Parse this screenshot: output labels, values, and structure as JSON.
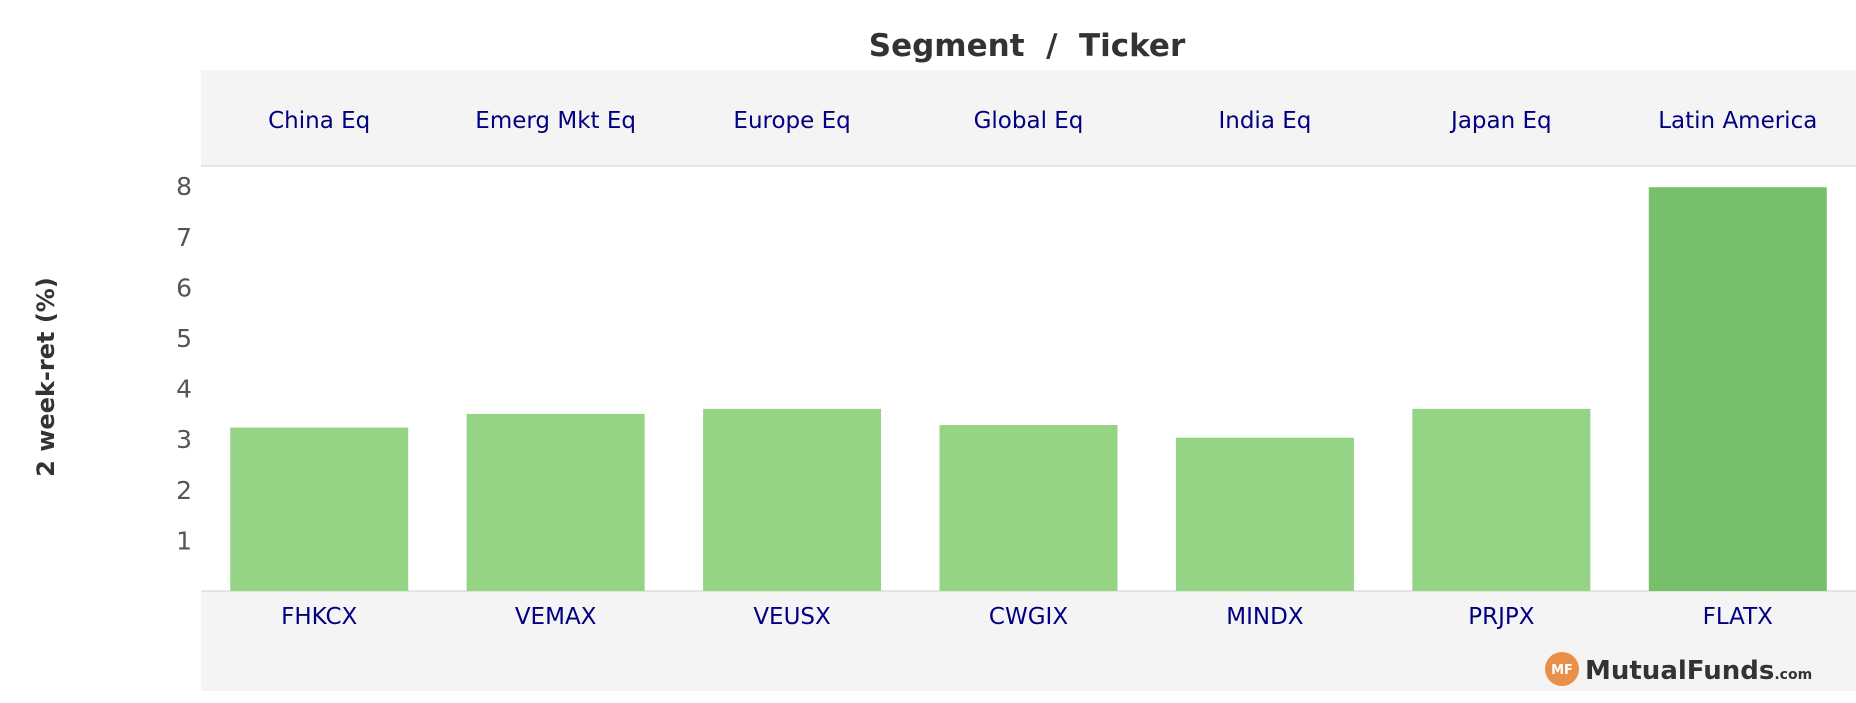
{
  "chart_data": {
    "type": "bar",
    "title": "Segment  /  Ticker",
    "ylabel": "2 week-ret (%)",
    "ylim": [
      0,
      8
    ],
    "y_ticks": [
      1,
      2,
      3,
      4,
      5,
      6,
      7,
      8
    ],
    "segments": [
      "China Eq",
      "Emerg Mkt Eq",
      "Europe Eq",
      "Global Eq",
      "India Eq",
      "Japan Eq",
      "Latin America"
    ],
    "categories": [
      "FHKCX",
      "VEMAX",
      "VEUSX",
      "CWGIX",
      "MINDX",
      "PRJPX",
      "FLATX"
    ],
    "values": [
      3.23,
      3.5,
      3.6,
      3.28,
      3.03,
      3.6,
      7.98
    ],
    "colors": {
      "bar_light": "#95d485",
      "bar_highlight": "#77bf6a",
      "header_bg": "#f4f4f4",
      "label_color": "#000080"
    },
    "grid": false,
    "legend": "none"
  },
  "brand": {
    "badge": "MF",
    "name": "MutualFunds",
    "suffix": ".com",
    "badge_color": "#e8904a"
  }
}
